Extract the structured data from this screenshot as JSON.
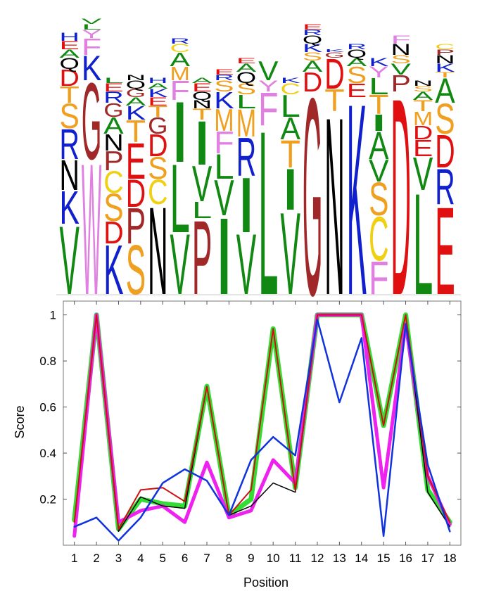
{
  "chart_data": [
    {
      "type": "logo",
      "letter_colors": {
        "V": "#118811",
        "L": "#118811",
        "I": "#118811",
        "A": "#118811",
        "S": "#f0a020",
        "T": "#f0a020",
        "M": "#f0a020",
        "K": "#1020cc",
        "R": "#1020cc",
        "H": "#1020cc",
        "D": "#e01010",
        "E": "#e01010",
        "N": "#000000",
        "Q": "#000000",
        "G": "#a02828",
        "P": "#a02828",
        "W": "#e080e0",
        "F": "#e080e0",
        "Y": "#e080e0",
        "C": "#f0d010"
      },
      "columns": [
        {
          "letters": [
            "V",
            "K",
            "N",
            "R",
            "S",
            "T",
            "D",
            "Q",
            "A",
            "E",
            "H"
          ],
          "heights": [
            0.25,
            0.12,
            0.11,
            0.11,
            0.09,
            0.06,
            0.06,
            0.04,
            0.03,
            0.03,
            0.03
          ]
        },
        {
          "letters": [
            "W",
            "G",
            "K",
            "F",
            "Y",
            "L",
            "V"
          ],
          "heights": [
            0.48,
            0.28,
            0.09,
            0.06,
            0.03,
            0.02,
            0.02
          ]
        },
        {
          "letters": [
            "K",
            "D",
            "S",
            "C",
            "P",
            "N",
            "A",
            "G",
            "R",
            "E",
            "L"
          ],
          "heights": [
            0.18,
            0.08,
            0.1,
            0.08,
            0.07,
            0.06,
            0.06,
            0.05,
            0.04,
            0.03,
            0.02
          ]
        },
        {
          "letters": [
            "S",
            "P",
            "D",
            "E",
            "T",
            "K",
            "A",
            "G",
            "Q",
            "N"
          ],
          "heights": [
            0.18,
            0.13,
            0.1,
            0.13,
            0.08,
            0.05,
            0.03,
            0.03,
            0.03,
            0.02
          ]
        },
        {
          "letters": [
            "N",
            "C",
            "S",
            "D",
            "G",
            "T",
            "E",
            "K",
            "A",
            "H"
          ],
          "heights": [
            0.32,
            0.09,
            0.08,
            0.08,
            0.06,
            0.04,
            0.03,
            0.03,
            0.02,
            0.02
          ]
        },
        {
          "letters": [
            "V",
            "L",
            "I",
            "F",
            "M",
            "A",
            "C",
            "R"
          ],
          "heights": [
            0.22,
            0.25,
            0.22,
            0.07,
            0.05,
            0.05,
            0.03,
            0.02
          ]
        },
        {
          "letters": [
            "P",
            "L",
            "V",
            "I",
            "T",
            "N",
            "Q",
            "E",
            "A"
          ],
          "heights": [
            0.27,
            0.06,
            0.13,
            0.16,
            0.04,
            0.03,
            0.03,
            0.03,
            0.02
          ]
        },
        {
          "letters": [
            "I",
            "V",
            "L",
            "F",
            "M",
            "K",
            "S",
            "R",
            "E"
          ],
          "heights": [
            0.28,
            0.13,
            0.09,
            0.08,
            0.08,
            0.06,
            0.04,
            0.02,
            0.02
          ]
        },
        {
          "letters": [
            "V",
            "I",
            "R",
            "M",
            "L",
            "S",
            "Q",
            "A",
            "E"
          ],
          "heights": [
            0.22,
            0.2,
            0.14,
            0.1,
            0.05,
            0.04,
            0.04,
            0.03,
            0.02
          ]
        },
        {
          "letters": [
            "L",
            "F",
            "Y",
            "V"
          ],
          "heights": [
            0.6,
            0.12,
            0.04,
            0.07
          ]
        },
        {
          "letters": [
            "V",
            "I",
            "T",
            "A",
            "L",
            "C",
            "K"
          ],
          "heights": [
            0.3,
            0.15,
            0.1,
            0.08,
            0.08,
            0.04,
            0.02
          ]
        },
        {
          "letters": [
            "G",
            "D",
            "A",
            "S",
            "K",
            "Q",
            "R",
            "E"
          ],
          "heights": [
            0.72,
            0.07,
            0.04,
            0.03,
            0.03,
            0.03,
            0.02,
            0.02
          ]
        },
        {
          "letters": [
            "N",
            "T",
            "D",
            "G",
            "K"
          ],
          "heights": [
            0.65,
            0.08,
            0.11,
            0.02,
            0.01
          ]
        },
        {
          "letters": [
            "K",
            "E",
            "S",
            "A",
            "Q",
            "R"
          ],
          "heights": [
            0.7,
            0.05,
            0.06,
            0.03,
            0.03,
            0.02
          ]
        },
        {
          "letters": [
            "F",
            "C",
            "S",
            "V",
            "A",
            "I",
            "T",
            "L",
            "Y",
            "K"
          ],
          "heights": [
            0.12,
            0.16,
            0.12,
            0.08,
            0.1,
            0.06,
            0.07,
            0.06,
            0.04,
            0.03
          ]
        },
        {
          "letters": [
            "D",
            "P",
            "V",
            "S",
            "N",
            "F"
          ],
          "heights": [
            0.72,
            0.06,
            0.04,
            0.03,
            0.04,
            0.03
          ]
        },
        {
          "letters": [
            "L",
            "V",
            "E",
            "D",
            "M",
            "T",
            "A",
            "S",
            "N"
          ],
          "heights": [
            0.37,
            0.12,
            0.06,
            0.05,
            0.05,
            0.04,
            0.03,
            0.02,
            0.02
          ]
        },
        {
          "letters": [
            "E",
            "R",
            "D",
            "S",
            "A",
            "T",
            "K",
            "N",
            "P",
            "C"
          ],
          "heights": [
            0.32,
            0.13,
            0.12,
            0.11,
            0.09,
            0.02,
            0.03,
            0.03,
            0.02,
            0.02
          ]
        }
      ]
    },
    {
      "type": "line",
      "xlabel": "Position",
      "ylabel": "Score",
      "x": [
        1,
        2,
        3,
        4,
        5,
        6,
        7,
        8,
        9,
        10,
        11,
        12,
        13,
        14,
        15,
        16,
        17,
        18
      ],
      "xlim": [
        0.5,
        18.5
      ],
      "xticks": [
        1,
        2,
        3,
        4,
        5,
        6,
        7,
        8,
        9,
        10,
        11,
        12,
        13,
        14,
        15,
        16,
        17,
        18
      ],
      "ylim": [
        0,
        1.06
      ],
      "yticks": [
        0.2,
        0.4,
        0.6,
        0.8,
        1
      ],
      "series": [
        {
          "color": "#33dd33",
          "width": 7,
          "values": [
            0.11,
            1,
            0.07,
            0.2,
            0.18,
            0.17,
            0.69,
            0.13,
            0.2,
            0.94,
            0.25,
            1,
            1,
            1,
            0.52,
            1,
            0.24,
            0.1
          ]
        },
        {
          "color": "#ee22ee",
          "width": 5,
          "values": [
            0.04,
            1,
            0.1,
            0.15,
            0.17,
            0.1,
            0.36,
            0.12,
            0.15,
            0.37,
            0.27,
            1,
            1,
            1,
            0.25,
            0.96,
            0.3,
            0.09
          ]
        },
        {
          "color": "#000000",
          "width": 1.5,
          "values": [
            0.1,
            1,
            0.06,
            0.21,
            0.17,
            0.16,
            0.69,
            0.13,
            0.17,
            0.27,
            0.23,
            1,
            1,
            1,
            0.52,
            1,
            0.23,
            0.08
          ]
        },
        {
          "color": "#cc1111",
          "width": 2,
          "values": [
            0.1,
            1,
            0.07,
            0.24,
            0.25,
            0.19,
            0.69,
            0.13,
            0.24,
            0.94,
            0.24,
            1,
            1,
            1,
            0.52,
            1,
            0.3,
            0.1
          ]
        },
        {
          "color": "#1133dd",
          "width": 2.5,
          "values": [
            0.08,
            0.12,
            0.02,
            0.12,
            0.27,
            0.33,
            0.28,
            0.13,
            0.37,
            0.47,
            0.39,
            0.98,
            0.62,
            0.9,
            0.04,
            0.96,
            0.35,
            0.06
          ]
        }
      ]
    }
  ]
}
